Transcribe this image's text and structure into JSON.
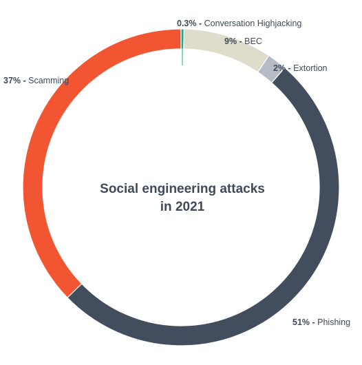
{
  "chart_data": {
    "type": "pie",
    "title_lines": [
      "Social engineering attacks",
      "in 2021"
    ],
    "slices": [
      {
        "label": "Conversation Highjacking",
        "pct_text": "0.3%",
        "value": 0.3,
        "color": "#1fa88a"
      },
      {
        "label": "BEC",
        "pct_text": "9%",
        "value": 9,
        "color": "#e0dccb"
      },
      {
        "label": "Extortion",
        "pct_text": "2%",
        "value": 2,
        "color": "#b5bcc6"
      },
      {
        "label": "Phishing",
        "pct_text": "51%",
        "value": 51,
        "color": "#424d5d"
      },
      {
        "label": "Scamming",
        "pct_text": "37%",
        "value": 37,
        "color": "#f15532"
      }
    ]
  }
}
